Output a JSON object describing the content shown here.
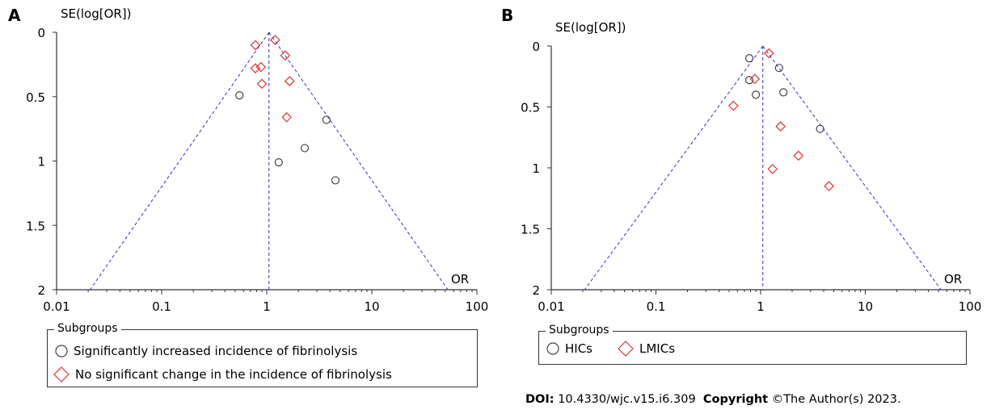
{
  "credit": {
    "doi_label": "DOI:",
    "doi_value": "10.4330/wjc.v15.i6.309",
    "copyright_label": "Copyright",
    "copyright_value": "©The Author(s) 2023."
  },
  "colors": {
    "funnel": "#3333cc",
    "circle": "#444444",
    "diamond": "#dd3333",
    "axis": "#333333"
  },
  "chart_data": [
    {
      "type": "scatter",
      "panel_label": "A",
      "ylabel": "SE(log[OR])",
      "xlabel": "OR",
      "x_scale": "log",
      "xlim": [
        0.01,
        100
      ],
      "ylim": [
        0,
        2
      ],
      "y_inverted": true,
      "x_ticks": [
        "0.01",
        "0.1",
        "1",
        "10",
        "100"
      ],
      "y_ticks": [
        "0",
        "0.5",
        "1",
        "1.5",
        "2"
      ],
      "funnel": {
        "pooled_or": 1.05,
        "max_se": 2
      },
      "legend": {
        "title": "Subgroups",
        "entries": [
          {
            "marker": "circle",
            "label": "Significantly increased incidence of fibrinolysis"
          },
          {
            "marker": "diamond",
            "label": "No significant change in the incidence of fibrinolysis"
          }
        ]
      },
      "series": [
        {
          "marker": "circle",
          "points": [
            {
              "x": 0.55,
              "y": 0.49
            },
            {
              "x": 3.7,
              "y": 0.68
            },
            {
              "x": 2.3,
              "y": 0.9
            },
            {
              "x": 1.3,
              "y": 1.01
            },
            {
              "x": 4.5,
              "y": 1.15
            }
          ]
        },
        {
          "marker": "diamond",
          "points": [
            {
              "x": 0.78,
              "y": 0.1
            },
            {
              "x": 1.2,
              "y": 0.06
            },
            {
              "x": 1.5,
              "y": 0.18
            },
            {
              "x": 0.78,
              "y": 0.28
            },
            {
              "x": 0.88,
              "y": 0.27
            },
            {
              "x": 0.9,
              "y": 0.4
            },
            {
              "x": 1.65,
              "y": 0.38
            },
            {
              "x": 1.55,
              "y": 0.66
            }
          ]
        }
      ]
    },
    {
      "type": "scatter",
      "panel_label": "B",
      "ylabel": "SE(log[OR])",
      "xlabel": "OR",
      "x_scale": "log",
      "xlim": [
        0.01,
        100
      ],
      "ylim": [
        0,
        2
      ],
      "y_inverted": true,
      "x_ticks": [
        "0.01",
        "0.1",
        "1",
        "10",
        "100"
      ],
      "y_ticks": [
        "0",
        "0.5",
        "1",
        "1.5",
        "2"
      ],
      "funnel": {
        "pooled_or": 1.05,
        "max_se": 2
      },
      "legend": {
        "title": "Subgroups",
        "entries": [
          {
            "marker": "circle",
            "label": "HICs"
          },
          {
            "marker": "diamond",
            "label": "LMICs"
          }
        ]
      },
      "series": [
        {
          "marker": "circle",
          "points": [
            {
              "x": 0.78,
              "y": 0.1
            },
            {
              "x": 1.5,
              "y": 0.18
            },
            {
              "x": 0.78,
              "y": 0.28
            },
            {
              "x": 0.9,
              "y": 0.4
            },
            {
              "x": 1.65,
              "y": 0.38
            },
            {
              "x": 3.7,
              "y": 0.68
            }
          ]
        },
        {
          "marker": "diamond",
          "points": [
            {
              "x": 1.2,
              "y": 0.06
            },
            {
              "x": 0.88,
              "y": 0.27
            },
            {
              "x": 0.55,
              "y": 0.49
            },
            {
              "x": 1.55,
              "y": 0.66
            },
            {
              "x": 2.3,
              "y": 0.9
            },
            {
              "x": 1.3,
              "y": 1.01
            },
            {
              "x": 4.5,
              "y": 1.15
            }
          ]
        }
      ]
    }
  ]
}
